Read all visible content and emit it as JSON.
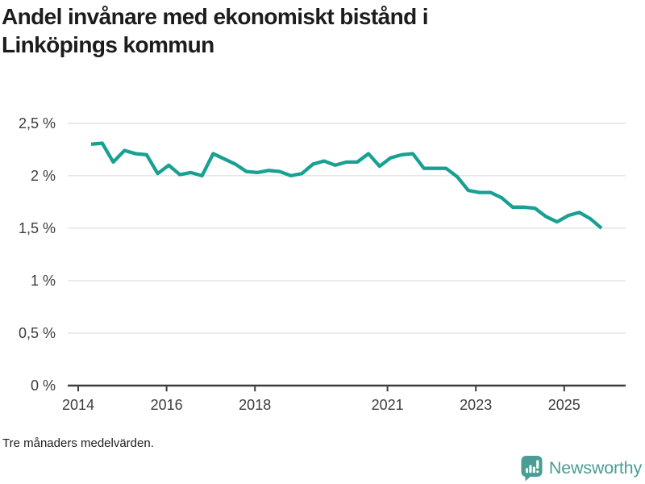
{
  "header": {
    "title_line1": "Andel invånare med ekonomiskt bistånd i",
    "title_line2": "Linköpings kommun"
  },
  "footer": {
    "note": "Tre månaders medelvärden.",
    "brand_name": "Newsworthy",
    "brand_icon": "bar-chart-speech-bubble-icon"
  },
  "colors": {
    "line": "#18a092",
    "grid": "#e2e2e2",
    "axis": "#3d3d3d",
    "tick_label": "#3d3d3d",
    "title_text": "#1c1c1c",
    "brand_teal": "#4a9d94"
  },
  "chart_data": {
    "type": "line",
    "title": "Andel invånare med ekonomiskt bistånd i Linköpings kommun",
    "note": "Tre månaders medelvärden.",
    "unit": "%",
    "ylim": [
      0,
      2.5
    ],
    "grid": true,
    "legend": false,
    "y_ticks": [
      {
        "value": 0,
        "label": "0 %"
      },
      {
        "value": 0.5,
        "label": "0,5 %"
      },
      {
        "value": 1,
        "label": "1 %"
      },
      {
        "value": 1.5,
        "label": "1,5 %"
      },
      {
        "value": 2,
        "label": "2 %"
      },
      {
        "value": 2.5,
        "label": "2,5 %"
      }
    ],
    "x_ticks": [
      {
        "year": 2014,
        "label": "2014"
      },
      {
        "year": 2016,
        "label": "2016"
      },
      {
        "year": 2018,
        "label": "2018"
      },
      {
        "year": 2021,
        "label": "2021"
      },
      {
        "year": 2023,
        "label": "2023"
      },
      {
        "year": 2025,
        "label": "2025"
      }
    ],
    "series": [
      {
        "name": "Andel invånare med ekonomiskt bistånd, Linköpings kommun",
        "color": "#18a092",
        "quarters": [
          "2014-Q2",
          "2014-Q3",
          "2014-Q4",
          "2015-Q1",
          "2015-Q2",
          "2015-Q3",
          "2015-Q4",
          "2016-Q1",
          "2016-Q2",
          "2016-Q3",
          "2016-Q4",
          "2017-Q1",
          "2017-Q2",
          "2017-Q3",
          "2017-Q4",
          "2018-Q1",
          "2018-Q2",
          "2018-Q3",
          "2018-Q4",
          "2019-Q1",
          "2019-Q2",
          "2019-Q3",
          "2019-Q4",
          "2020-Q1",
          "2020-Q2",
          "2020-Q3",
          "2020-Q4",
          "2021-Q1",
          "2021-Q2",
          "2021-Q3",
          "2021-Q4",
          "2022-Q1",
          "2022-Q2",
          "2022-Q3",
          "2022-Q4",
          "2023-Q1",
          "2023-Q2",
          "2023-Q3",
          "2023-Q4",
          "2024-Q1",
          "2024-Q2",
          "2024-Q3",
          "2024-Q4",
          "2025-Q1",
          "2025-Q2",
          "2025-Q3",
          "2025-Q4"
        ],
        "values": [
          2.3,
          2.31,
          2.13,
          2.24,
          2.21,
          2.2,
          2.02,
          2.1,
          2.01,
          2.03,
          2.0,
          2.21,
          2.16,
          2.11,
          2.04,
          2.03,
          2.05,
          2.04,
          2.0,
          2.02,
          2.11,
          2.14,
          2.1,
          2.13,
          2.13,
          2.21,
          2.09,
          2.17,
          2.2,
          2.21,
          2.07,
          2.07,
          2.07,
          1.99,
          1.86,
          1.84,
          1.84,
          1.79,
          1.7,
          1.7,
          1.69,
          1.61,
          1.56,
          1.62,
          1.65,
          1.59,
          1.5
        ]
      }
    ]
  }
}
